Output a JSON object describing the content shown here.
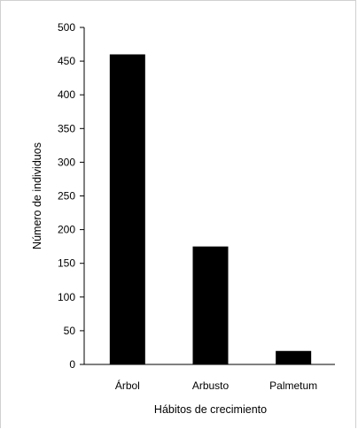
{
  "chart_data": {
    "type": "bar",
    "categories": [
      "Árbol",
      "Arbusto",
      "Palmetum"
    ],
    "values": [
      460,
      175,
      20
    ],
    "xlabel": "Hábitos de crecimiento",
    "ylabel": "Número de individuos",
    "ylim": [
      0,
      500
    ],
    "yticks": [
      0,
      50,
      100,
      150,
      200,
      250,
      300,
      350,
      400,
      450,
      500
    ],
    "grid": false,
    "legend": "none",
    "bar_color": "#000000"
  }
}
